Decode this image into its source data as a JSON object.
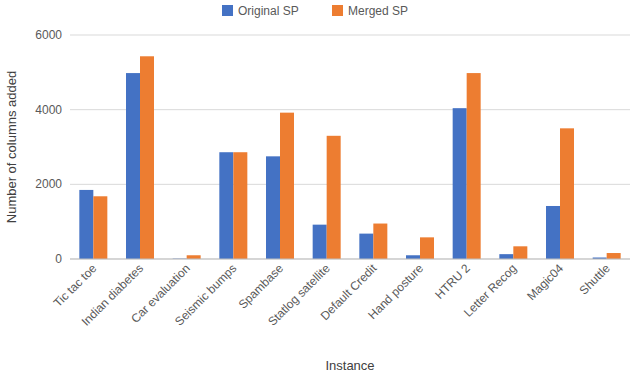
{
  "chart_data": {
    "type": "bar",
    "x_label": "Instance",
    "y_label": "Number of columns added",
    "categories": [
      "Tic tac toe",
      "Indian diabetes",
      "Car evaluation",
      "Seismic bumps",
      "Spambase",
      "Statlog satellite",
      "Default Credit",
      "Hand posture",
      "HTRU 2",
      "Letter Recog",
      "Magic04",
      "Shuttle"
    ],
    "series": [
      {
        "name": "Original SP",
        "color": "#4472c4",
        "values": [
          1850,
          4980,
          10,
          2860,
          2750,
          920,
          680,
          100,
          4040,
          130,
          1420,
          40
        ]
      },
      {
        "name": "Merged SP",
        "color": "#ed7d31",
        "values": [
          1680,
          5430,
          100,
          2860,
          3920,
          3300,
          950,
          580,
          4980,
          340,
          3500,
          160
        ]
      }
    ],
    "ylim": [
      0,
      6000
    ],
    "yticks": [
      0,
      2000,
      4000,
      6000
    ],
    "grid": true,
    "legend": "top"
  }
}
